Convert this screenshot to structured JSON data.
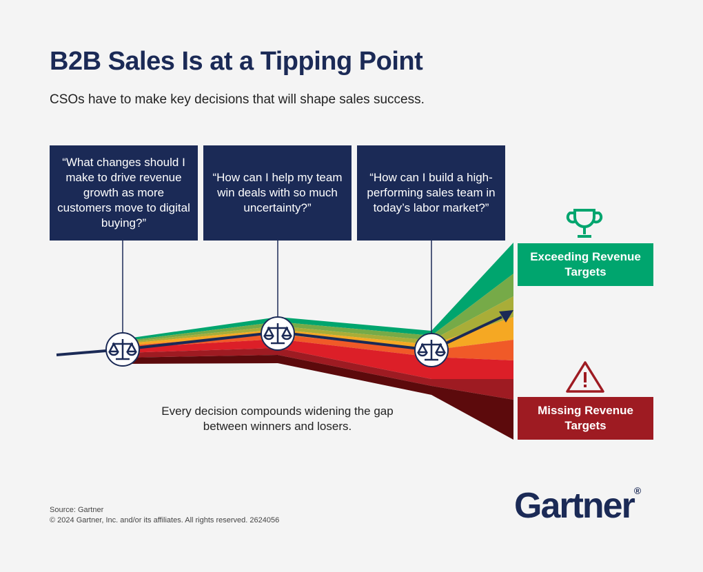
{
  "header": {
    "title": "B2B Sales Is at a Tipping Point",
    "subtitle": "CSOs have to make key decisions that will shape sales success."
  },
  "questions": [
    {
      "text": "“What changes should I make to drive revenue growth as more customers move to digital buying?”"
    },
    {
      "text": "“How can I help my team win deals with so much uncertainty?”"
    },
    {
      "text": "“How can I build a high-performing sales team in today’s labor market?”"
    }
  ],
  "outcomes": {
    "exceeding": {
      "label": "Exceeding Revenue Targets",
      "icon": "trophy-icon",
      "color": "#00a56e"
    },
    "missing": {
      "label": "Missing Revenue Targets",
      "icon": "warning-icon",
      "color": "#9e1b22"
    }
  },
  "caption": "Every decision compounds widening the gap between winners and losers.",
  "decision_icon": "scales-icon",
  "band_colors": [
    "#00a56e",
    "#76aa48",
    "#a9ad38",
    "#f5a823",
    "#f05a28",
    "#dc1f28",
    "#9e1b22",
    "#5c0a0c"
  ],
  "footer": {
    "source": "Source: Gartner",
    "copyright": "© 2024 Gartner, Inc. and/or its affiliates. All rights reserved. 2624056",
    "logo": "Gartner"
  },
  "colors": {
    "navy": "#1b2a56",
    "background": "#f4f4f4"
  }
}
